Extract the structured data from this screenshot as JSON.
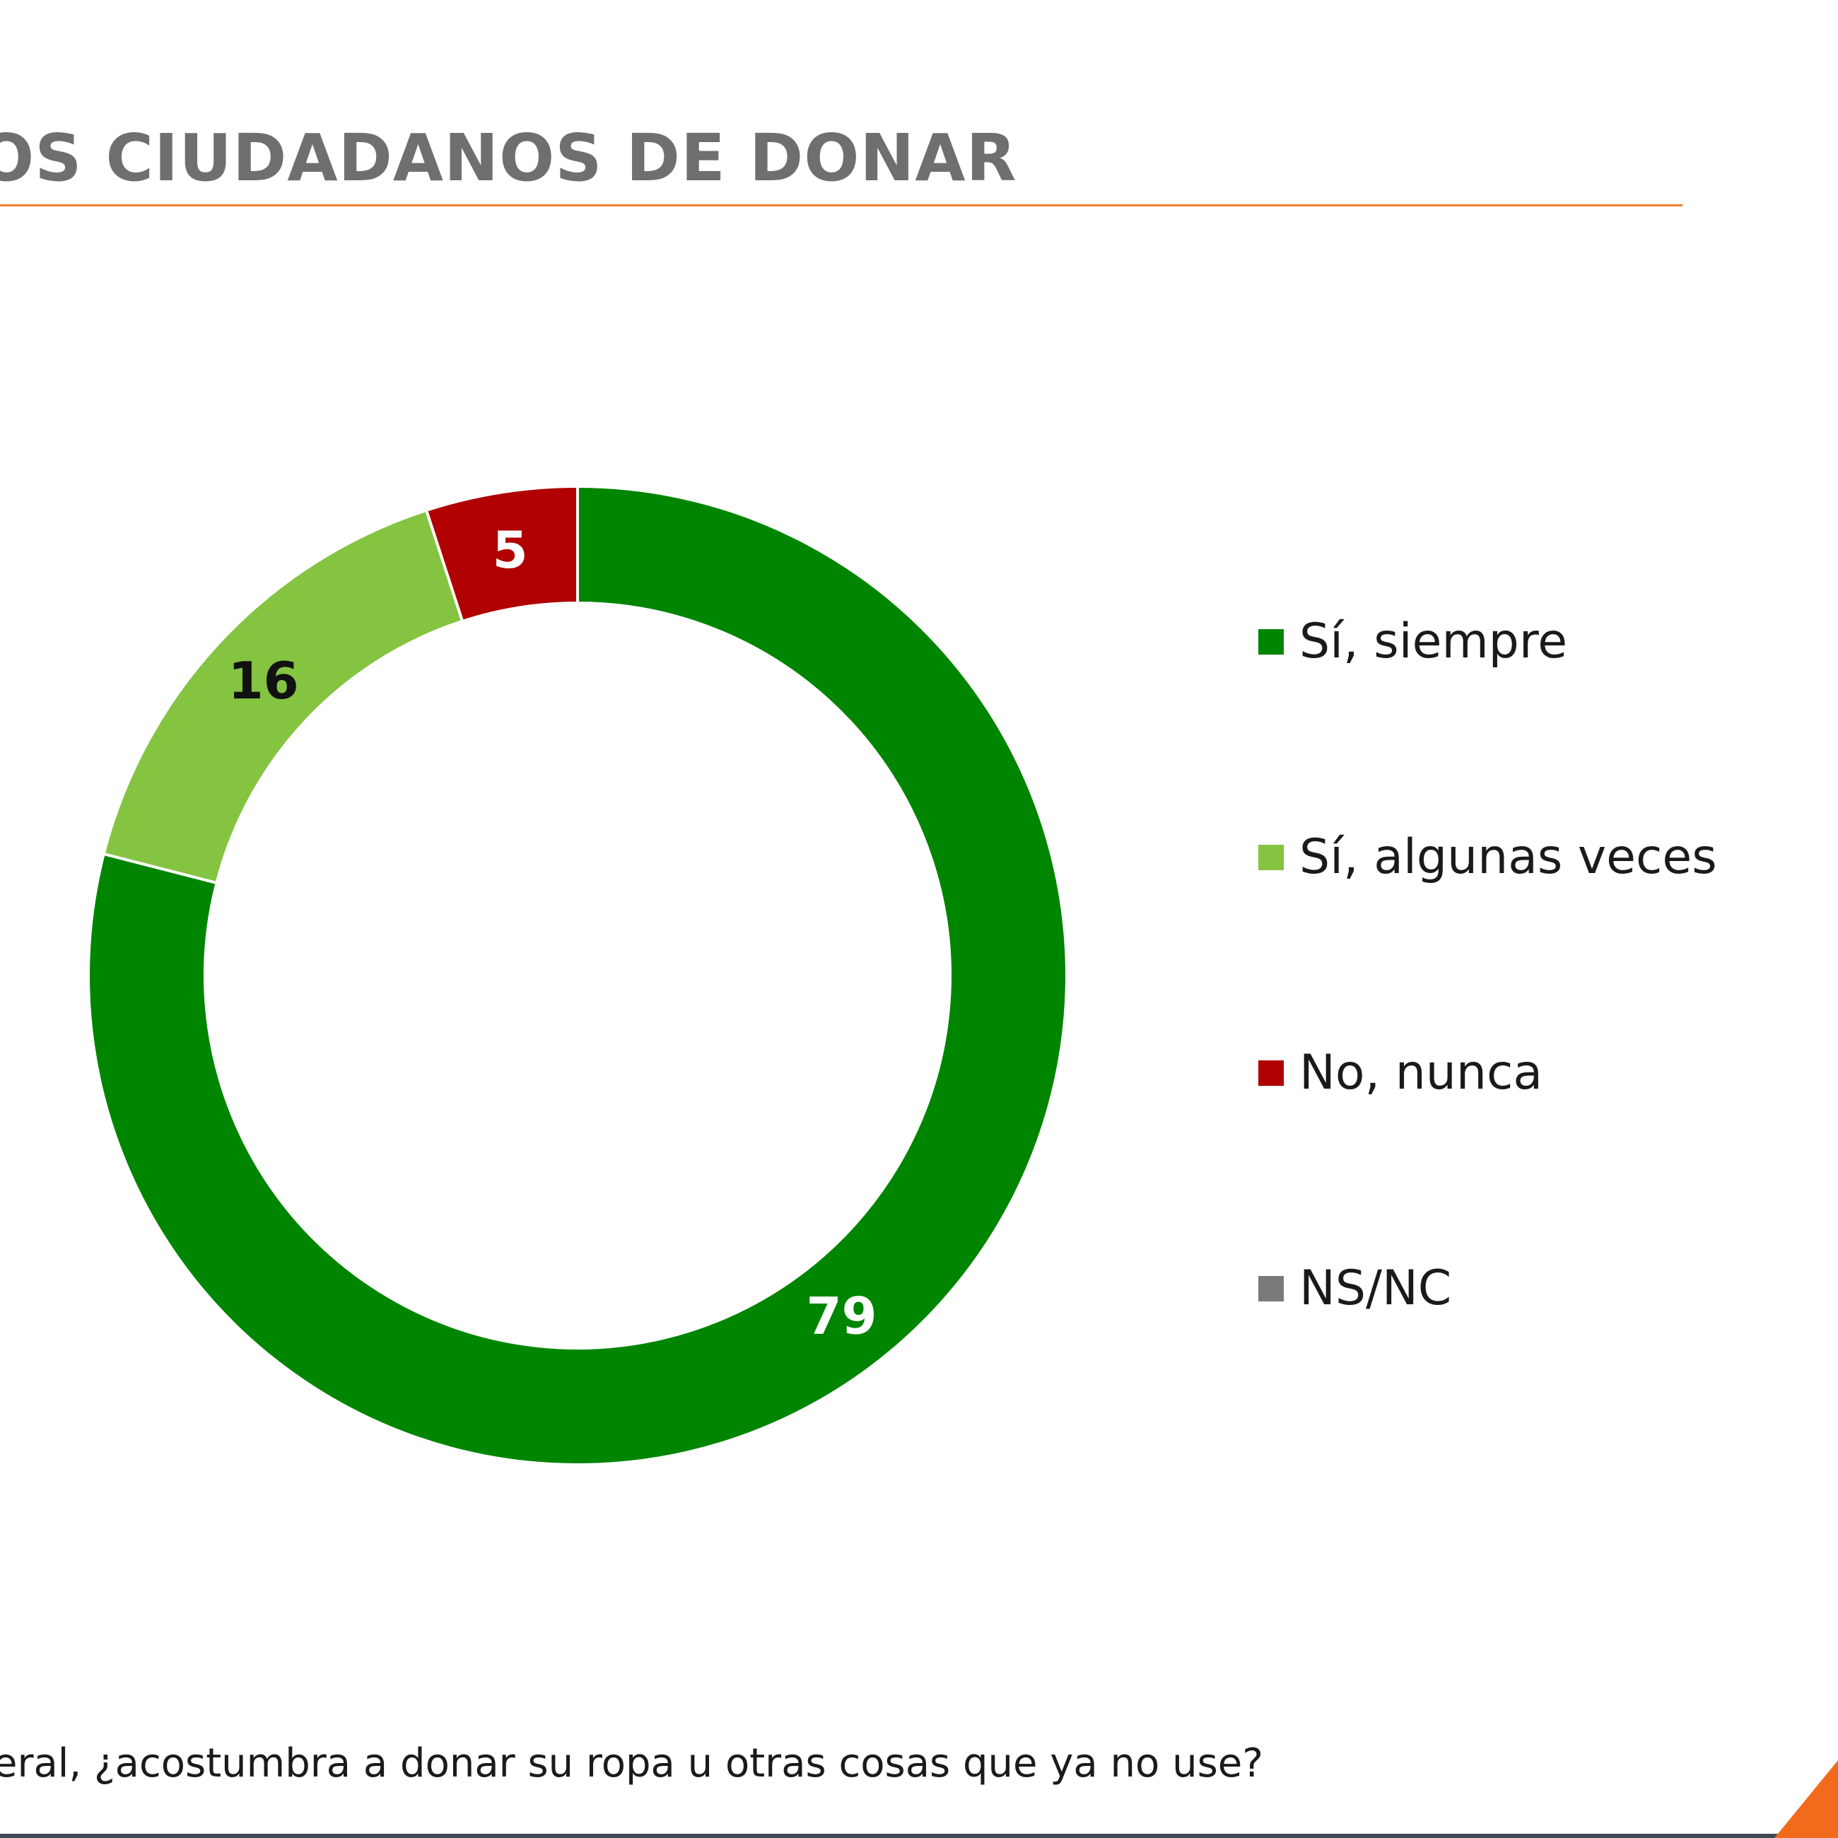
{
  "header": {
    "title": "OS CIUDADANOS DE DONAR"
  },
  "chart_data": {
    "type": "donut",
    "title": "",
    "categories": [
      "Sí, siempre",
      "Sí, algunas veces",
      "No, nunca",
      "NS/NC"
    ],
    "values": [
      79,
      16,
      5,
      0
    ],
    "colors": [
      "#008500",
      "#84c441",
      "#b00000",
      "#7a7a7a"
    ],
    "data_labels": [
      "79",
      "16",
      "5",
      ""
    ],
    "data_label_colors": [
      "#ffffff",
      "#111111",
      "#ffffff",
      "#ffffff"
    ],
    "legend_position": "right"
  },
  "footer": {
    "question": "eral, ¿acostumbra a donar su ropa u otras cosas que ya no use?"
  }
}
